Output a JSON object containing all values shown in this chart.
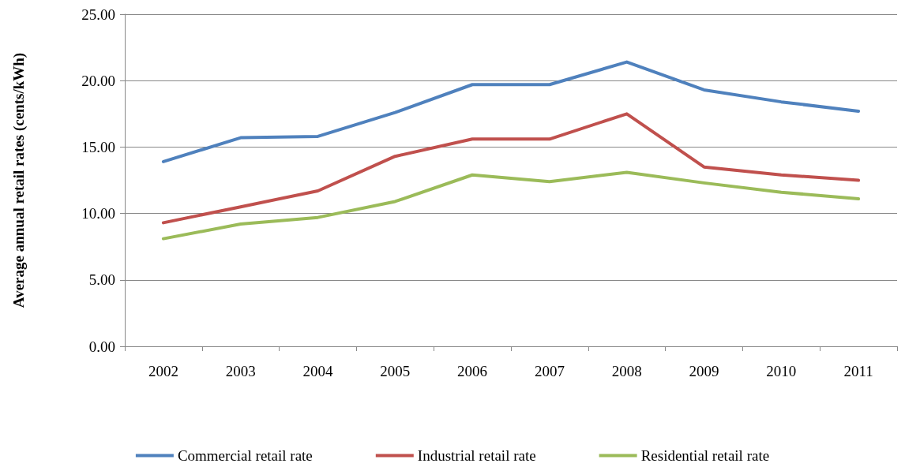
{
  "chart_data": {
    "type": "line",
    "ylabel": "Average annual retail rates (cents/kWh)",
    "categories": [
      "2002",
      "2003",
      "2004",
      "2005",
      "2006",
      "2007",
      "2008",
      "2009",
      "2010",
      "2011"
    ],
    "series": [
      {
        "name": "Commercial retail rate",
        "color": "#4f81bd",
        "values": [
          13.9,
          15.7,
          15.8,
          17.6,
          19.7,
          19.7,
          21.4,
          19.3,
          18.4,
          17.7
        ]
      },
      {
        "name": "Industrial retail rate",
        "color": "#c0504d",
        "values": [
          9.3,
          10.5,
          11.7,
          14.3,
          15.6,
          15.6,
          17.5,
          13.5,
          12.9,
          12.5
        ]
      },
      {
        "name": "Residential retail rate",
        "color": "#9bbb59",
        "values": [
          8.1,
          9.2,
          9.7,
          10.9,
          12.9,
          12.4,
          13.1,
          12.3,
          11.6,
          11.1
        ]
      }
    ],
    "ylim": [
      0,
      25
    ],
    "yticks": [
      {
        "value": 0,
        "label": "0.00"
      },
      {
        "value": 5,
        "label": "5.00"
      },
      {
        "value": 10,
        "label": "10.00"
      },
      {
        "value": 15,
        "label": "15.00"
      },
      {
        "value": 20,
        "label": "20.00"
      },
      {
        "value": 25,
        "label": "25.00"
      }
    ],
    "grid": "y",
    "legend": "bottom",
    "marker": "none",
    "line_style": "solid"
  }
}
